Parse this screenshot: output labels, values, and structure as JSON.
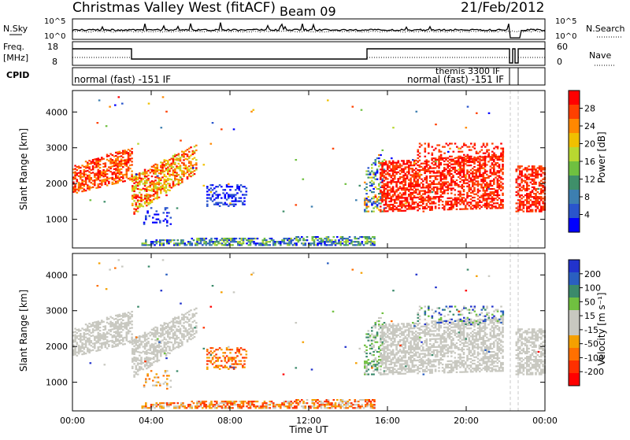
{
  "header": {
    "title": "Christmas Valley West (fitACF)",
    "beam": "Beam 09",
    "date": "21/Feb/2012"
  },
  "top_panels": {
    "nsky_label": "N.Sky",
    "nsky_scale": [
      "10^5",
      "10^0"
    ],
    "nsearch_label": "N.Search",
    "nsearch_scale": [
      "10^5",
      "10^0"
    ],
    "freq_label": "Freq.",
    "freq_unit": "[MHz]",
    "freq_scale": [
      "18",
      "8"
    ],
    "nave_label": "Nave",
    "nave_scale": [
      "60",
      "0"
    ],
    "cpid_label": "CPID",
    "cpid_left": "normal (fast) -151 IF",
    "cpid_themis": "themis 3300 IF",
    "cpid_right": "normal (fast) -151 IF"
  },
  "colors": {
    "power_scale": [
      "#0000ff",
      "#2a55cc",
      "#3d7fb0",
      "#3f8f6a",
      "#6fc040",
      "#b8d830",
      "#f0c000",
      "#ff8800",
      "#ff4000",
      "#ff0000"
    ],
    "velocity_scale": [
      "#2233cc",
      "#2a5fc0",
      "#3b8a6b",
      "#70c040",
      "#c8c8c0",
      "#c8c8c0",
      "#f5a000",
      "#ff7000",
      "#ff3000",
      "#ff0000"
    ]
  },
  "chart_data": [
    {
      "type": "heatmap",
      "name": "Power panel",
      "xlabel": "",
      "ylabel": "Slant Range [km]",
      "x_ticks": [
        "00:00",
        "04:00",
        "08:00",
        "12:00",
        "16:00",
        "20:00",
        "00:00"
      ],
      "y_ticks": [
        1000,
        2000,
        3000,
        4000
      ],
      "xlim_hours": [
        0,
        24
      ],
      "ylim_km": [
        200,
        4600
      ],
      "colorbar": {
        "label": "Power [dB]",
        "ticks": [
          4,
          8,
          12,
          16,
          20,
          24,
          28
        ]
      }
    },
    {
      "type": "heatmap",
      "name": "Velocity panel",
      "xlabel": "Time UT",
      "ylabel": "Slant Range [km]",
      "x_ticks": [
        "00:00",
        "04:00",
        "08:00",
        "12:00",
        "16:00",
        "20:00",
        "00:00"
      ],
      "y_ticks": [
        1000,
        2000,
        3000,
        4000
      ],
      "xlim_hours": [
        0,
        24
      ],
      "ylim_km": [
        200,
        4600
      ],
      "colorbar": {
        "label": "Velocity [m s⁻¹]",
        "ticks": [
          200,
          100,
          50,
          15,
          -15,
          -50,
          -100,
          -200
        ]
      }
    }
  ]
}
